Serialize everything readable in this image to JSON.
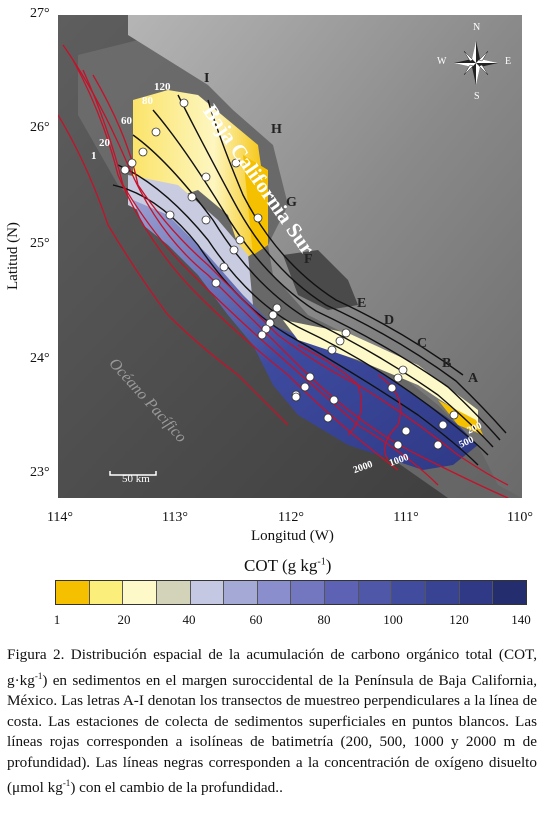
{
  "map": {
    "region_label": "Baja California Sur",
    "ocean_label": "Océano Pacífico",
    "scale_label": "50 km",
    "compass": {
      "n": "N",
      "s": "S",
      "e": "E",
      "w": "W"
    },
    "transects": [
      "A",
      "B",
      "C",
      "D",
      "E",
      "F",
      "G",
      "H",
      "I"
    ],
    "oxygen_isolines": [
      "1",
      "20",
      "60",
      "80",
      "120"
    ],
    "bathymetry_labels": [
      "200",
      "500",
      "1000",
      "2000"
    ],
    "latitude_ticks": [
      "27°",
      "26°",
      "25°",
      "24°",
      "23°"
    ],
    "longitude_ticks": [
      "114°",
      "113°",
      "112°",
      "111°",
      "110°"
    ],
    "ylabel": "Latitud (N)",
    "xlabel": "Longitud (W)"
  },
  "colorbar": {
    "title": "COT (g kg",
    "title_sup": "-1",
    "title_end": ")",
    "ticks": [
      "1",
      "20",
      "40",
      "60",
      "80",
      "100",
      "120",
      "140"
    ],
    "colors": [
      "#f5c000",
      "#fbee7a",
      "#fdf9c8",
      "#d2d3b8",
      "#c5c8e3",
      "#a5a9d6",
      "#8a8ecc",
      "#7377c0",
      "#5d62b4",
      "#4f57a9",
      "#424c9f",
      "#394393",
      "#2f3986",
      "#242d6e"
    ]
  },
  "caption": {
    "p1": "Figura 2. Distribución espacial de la acumulación de carbono orgánico total (COT, g·kg",
    "p1_sup": "-1",
    "p2": ") en sedimentos en el margen suroccidental de la Península de Baja California, México. Las letras A-I denotan los transectos de muestreo perpendiculares a la línea de costa. Las estaciones de colecta de sedimentos superficiales en puntos blancos. Las líneas rojas corresponden a isolíneas de batimetría (200, 500, 1000 y 2000 m de profundidad). Las líneas negras corresponden a la concentración de oxígeno disuelto (μmol kg",
    "p2_sup": "-1",
    "p3": ") con el cambio de la profundidad.."
  }
}
